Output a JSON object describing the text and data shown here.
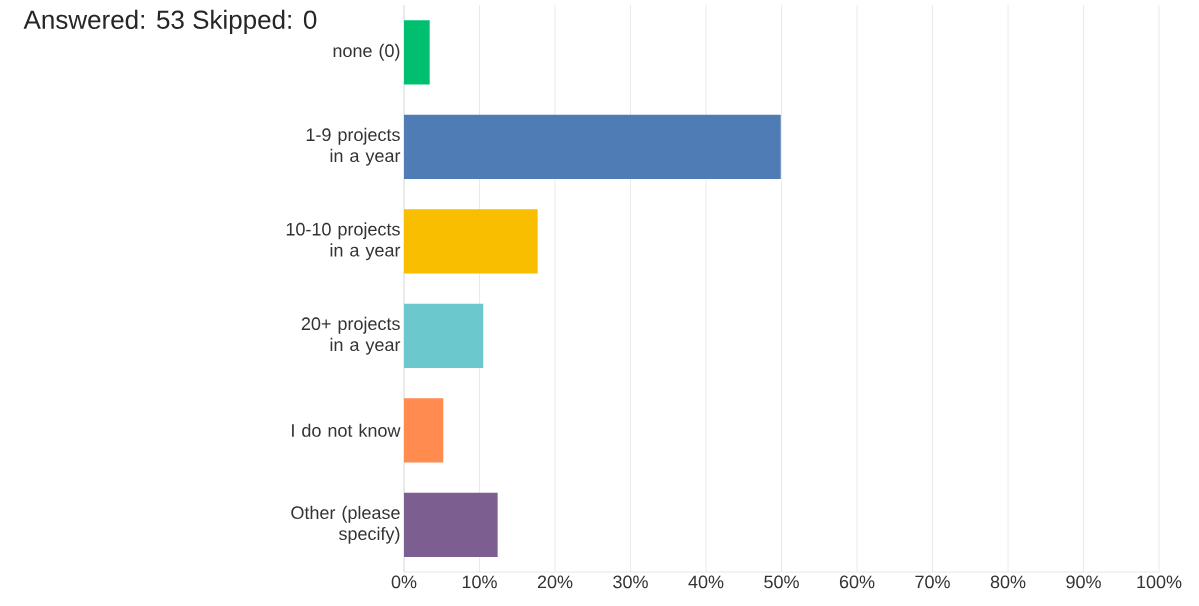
{
  "chart_data": {
    "type": "bar",
    "orientation": "horizontal",
    "title": "Answered: 53 Skipped: 0",
    "categories": [
      "none (0)",
      "1-9 projects in a year",
      "10-10 projects in a year",
      "20+ projects in a year",
      "I do not know",
      "Other (please specify)"
    ],
    "values": [
      3.4,
      49.9,
      17.7,
      10.5,
      5.2,
      12.4
    ],
    "colors": [
      "#00bf6f",
      "#507cb6",
      "#f9be00",
      "#6bc8cd",
      "#ff8b4f",
      "#7d5e90"
    ],
    "xlim": [
      0,
      100
    ],
    "xticks": [
      {
        "value": 0,
        "label": "0%"
      },
      {
        "value": 10,
        "label": "10%"
      },
      {
        "value": 20,
        "label": "20%"
      },
      {
        "value": 30,
        "label": "30%"
      },
      {
        "value": 40,
        "label": "40%"
      },
      {
        "value": 50,
        "label": "50%"
      },
      {
        "value": 60,
        "label": "60%"
      },
      {
        "value": 70,
        "label": "70%"
      },
      {
        "value": 80,
        "label": "80%"
      },
      {
        "value": 90,
        "label": "90%"
      },
      {
        "value": 100,
        "label": "100%"
      }
    ],
    "grid": "x"
  }
}
